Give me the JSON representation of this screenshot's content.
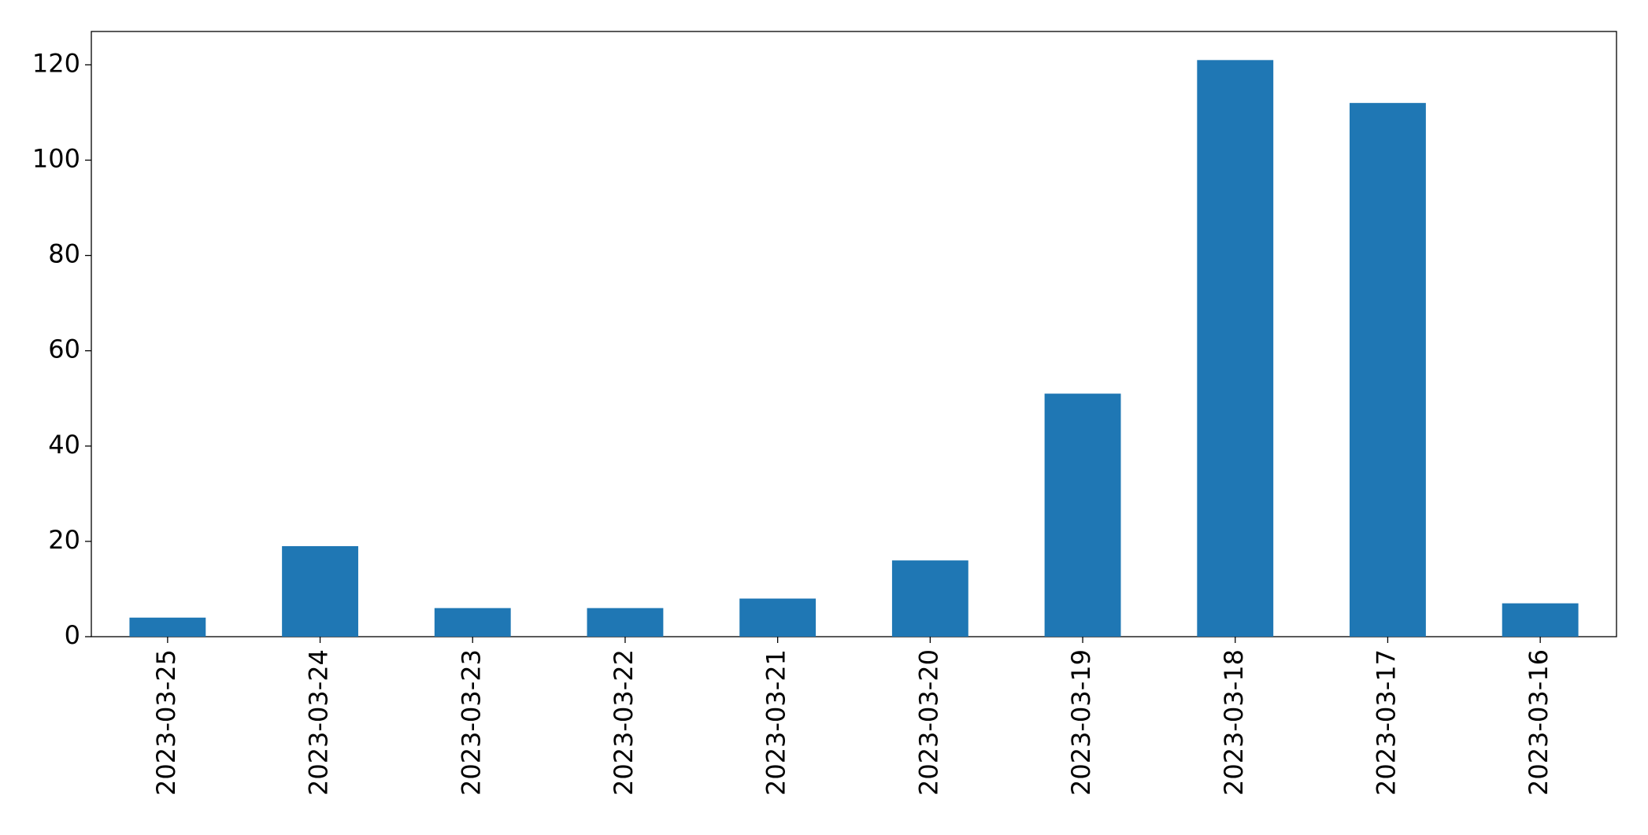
{
  "chart_data": {
    "type": "bar",
    "categories": [
      "2023-03-25",
      "2023-03-24",
      "2023-03-23",
      "2023-03-22",
      "2023-03-21",
      "2023-03-20",
      "2023-03-19",
      "2023-03-18",
      "2023-03-17",
      "2023-03-16"
    ],
    "values": [
      4,
      19,
      6,
      6,
      8,
      16,
      51,
      121,
      112,
      7
    ],
    "color": "#1f77b4",
    "ylim": [
      0,
      127
    ],
    "yticks": [
      0,
      20,
      40,
      60,
      80,
      100,
      120
    ],
    "grid": false
  }
}
